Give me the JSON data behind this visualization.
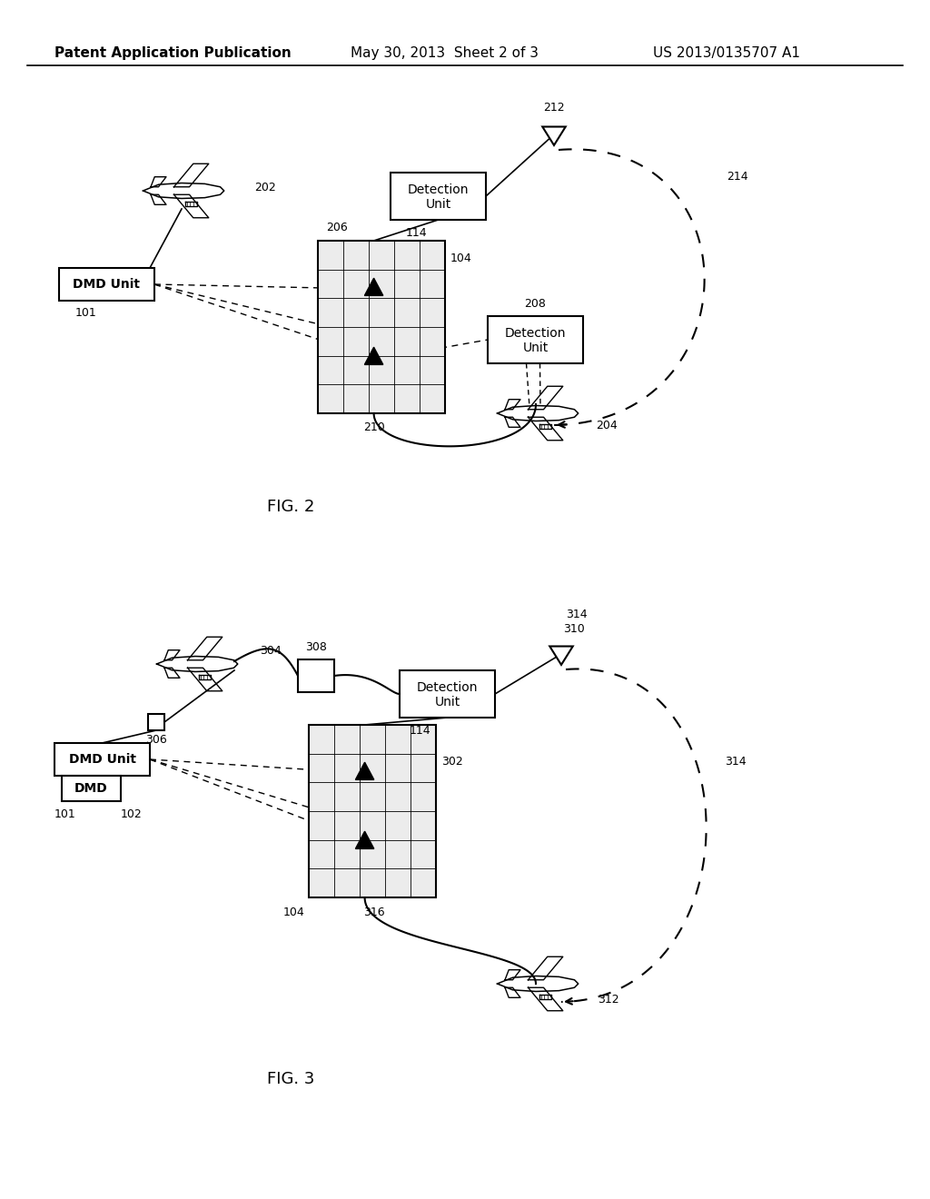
{
  "bg_color": "#ffffff",
  "header_text": "Patent Application Publication",
  "header_date": "May 30, 2013  Sheet 2 of 3",
  "header_patent": "US 2013/0135707 A1",
  "fig2_label": "FIG. 2",
  "fig3_label": "FIG. 3",
  "line_color": "#000000"
}
